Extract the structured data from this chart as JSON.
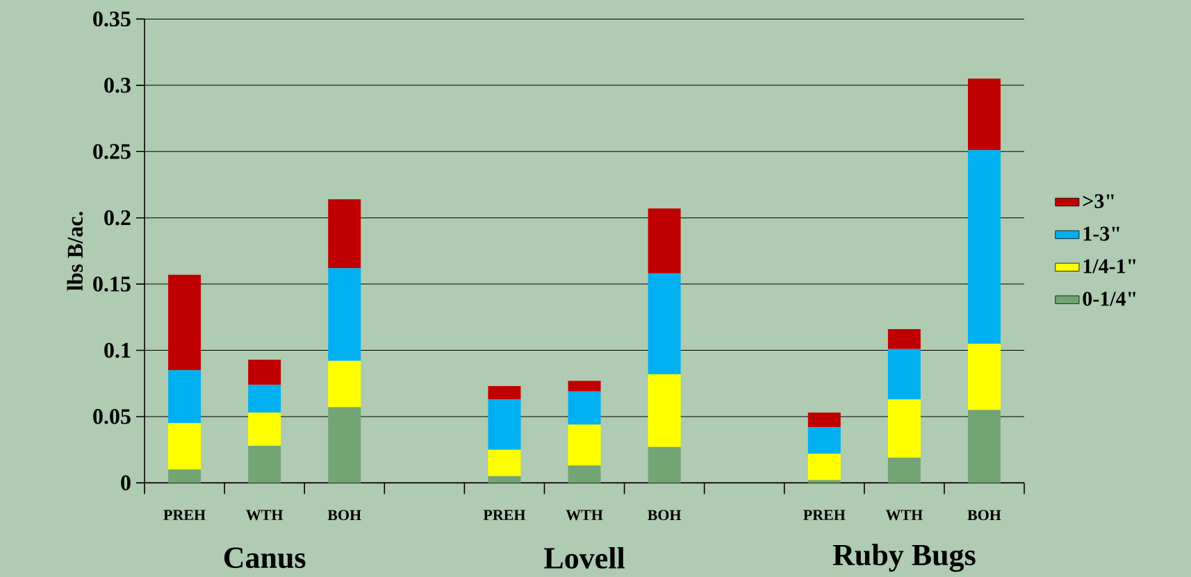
{
  "chart_data": {
    "type": "bar",
    "stacked": true,
    "ylabel": "lbs B/ac.",
    "categories": [
      "PREH",
      "WTH",
      "BOH",
      null,
      "PREH",
      "WTH",
      "BOH",
      null,
      "PREH",
      "WTH",
      "BOH"
    ],
    "series": [
      {
        "name": "0-1/4\"",
        "color": "#72a474",
        "values": [
          0.01,
          0.028,
          0.057,
          null,
          0.005,
          0.013,
          0.027,
          null,
          0.002,
          0.019,
          0.055
        ]
      },
      {
        "name": "1/4-1\"",
        "color": "#ffff00",
        "values": [
          0.035,
          0.025,
          0.035,
          null,
          0.02,
          0.031,
          0.055,
          null,
          0.02,
          0.044,
          0.05
        ]
      },
      {
        "name": "1-3\"",
        "color": "#00b0f0",
        "values": [
          0.04,
          0.021,
          0.07,
          null,
          0.038,
          0.025,
          0.076,
          null,
          0.02,
          0.038,
          0.146
        ]
      },
      {
        "name": ">3\"",
        "color": "#c00000",
        "values": [
          0.072,
          0.019,
          0.052,
          null,
          0.01,
          0.008,
          0.049,
          null,
          0.011,
          0.015,
          0.054
        ]
      }
    ],
    "annotations": [
      "Canus",
      "Lovell",
      "Ruby Bugs"
    ],
    "ylim": [
      0,
      0.35
    ],
    "yticks": [
      0,
      0.05,
      0.1,
      0.15,
      0.2,
      0.25,
      0.3,
      0.35
    ],
    "grid": "y",
    "legend": "right"
  }
}
